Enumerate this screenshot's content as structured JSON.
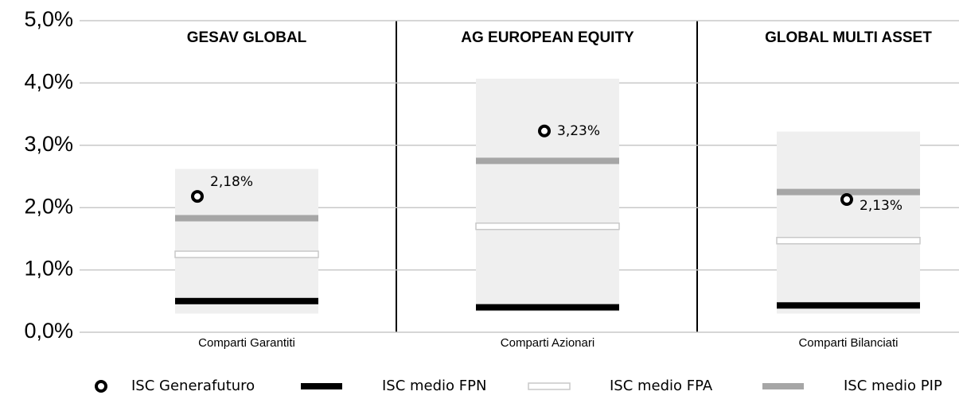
{
  "chart_data": {
    "type": "range-marker",
    "categories": [
      "Comparti Garantiti",
      "Comparti Azionari",
      "Comparti Bilanciati"
    ],
    "panel_titles": [
      "GESAV GLOBAL",
      "AG EUROPEAN EQUITY",
      "GLOBAL MULTI ASSET"
    ],
    "ylim": [
      0,
      5
    ],
    "yticks": [
      {
        "value": 0,
        "label": "0,0%"
      },
      {
        "value": 1,
        "label": "1,0%"
      },
      {
        "value": 2,
        "label": "2,0%"
      },
      {
        "value": 3,
        "label": "3,0%"
      },
      {
        "value": 4,
        "label": "4,0%"
      },
      {
        "value": 5,
        "label": "5,0%"
      }
    ],
    "grid": true,
    "ranges": {
      "color": "#efefef",
      "low": [
        0.3,
        0.33,
        0.3
      ],
      "high": [
        2.62,
        4.07,
        3.22
      ]
    },
    "series": [
      {
        "name": "ISC Generafuturo",
        "marker": "circle",
        "color": "#000000",
        "values": [
          2.18,
          3.23,
          2.13
        ],
        "value_labels": [
          "2,18%",
          "3,23%",
          "2,13%"
        ]
      },
      {
        "name": "ISC medio FPN",
        "marker": "line",
        "color": "#000000",
        "values": [
          0.5,
          0.4,
          0.43
        ]
      },
      {
        "name": "ISC medio FPA",
        "marker": "line",
        "color": "#ffffff",
        "values": [
          1.25,
          1.7,
          1.47
        ]
      },
      {
        "name": "ISC medio PIP",
        "marker": "line",
        "color": "#a6a6a6",
        "values": [
          1.83,
          2.75,
          2.25
        ]
      }
    ]
  }
}
